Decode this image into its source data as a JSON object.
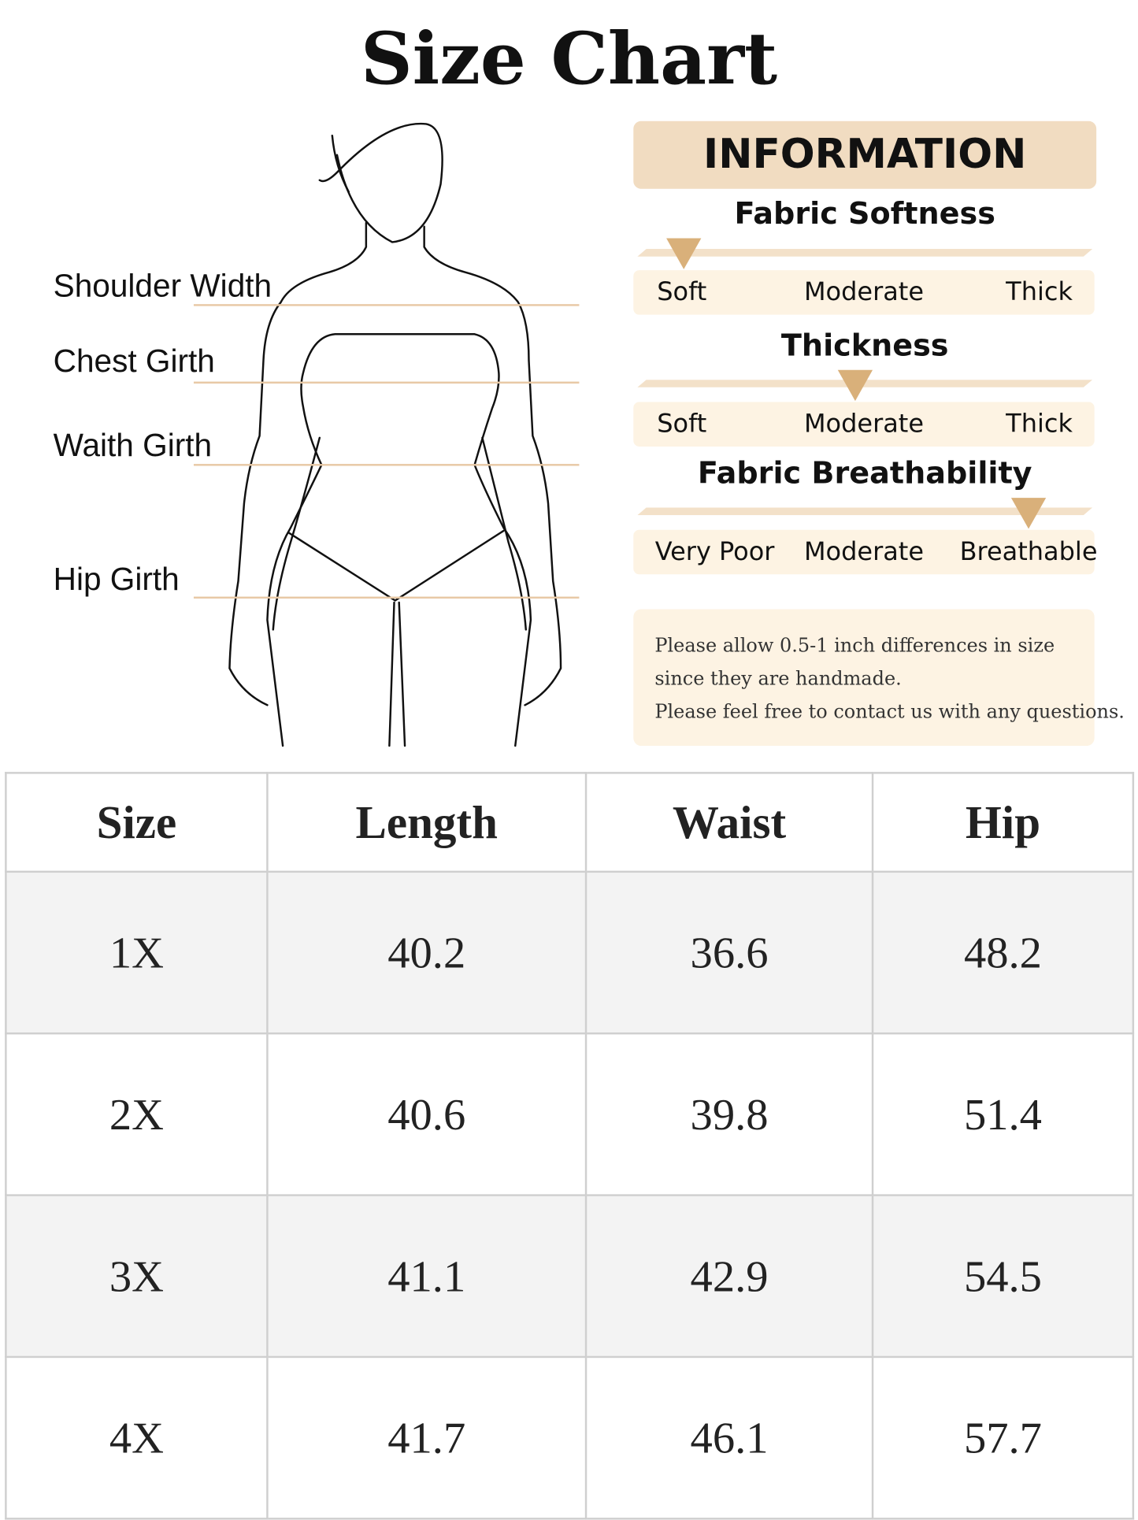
{
  "title": "Size Chart",
  "measurements": [
    "Shoulder Width",
    "Chest Girth",
    "Waith Girth",
    "Hip Girth"
  ],
  "information": {
    "header": "INFORMATION",
    "accent_color": "#d9b07a",
    "scales": [
      {
        "title": "Fabric Softness",
        "options": [
          "Soft",
          "Moderate",
          "Thick"
        ],
        "selected": "Soft"
      },
      {
        "title": "Thickness",
        "options": [
          "Soft",
          "Moderate",
          "Thick"
        ],
        "selected": "Moderate"
      },
      {
        "title": "Fabric Breathability",
        "options": [
          "Very Poor",
          "Moderate",
          "Breathable"
        ],
        "selected": "Breathable"
      }
    ],
    "note": [
      "Please allow 0.5-1 inch differences in size",
      "since they are handmade.",
      "Please feel free to contact us with any questions."
    ]
  },
  "table": {
    "headers": [
      "Size",
      "Length",
      "Waist",
      "Hip"
    ],
    "rows": [
      [
        "1X",
        "40.2",
        "36.6",
        "48.2"
      ],
      [
        "2X",
        "40.6",
        "39.8",
        "51.4"
      ],
      [
        "3X",
        "41.1",
        "42.9",
        "54.5"
      ],
      [
        "4X",
        "41.7",
        "46.1",
        "57.7"
      ]
    ]
  }
}
